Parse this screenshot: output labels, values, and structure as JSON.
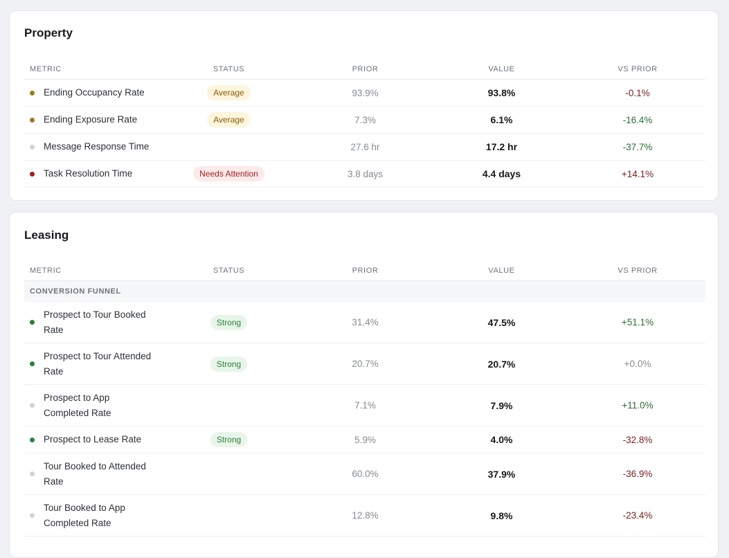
{
  "colors": {
    "average": "#9a7a1a",
    "strong": "#2e7d3a",
    "attention": "#a01d1d",
    "neutral": "#cfd3da"
  },
  "property": {
    "title": "Property",
    "headers": [
      "METRIC",
      "STATUS",
      "PRIOR",
      "VALUE",
      "VS PRIOR"
    ],
    "rows": [
      {
        "metric": "Ending Occupancy Rate",
        "status": "Average",
        "prior": "93.9%",
        "value": "93.8%",
        "vs": "-0.1%"
      },
      {
        "metric": "Ending Exposure Rate",
        "status": "Average",
        "prior": "7.3%",
        "value": "6.1%",
        "vs": "-16.4%"
      },
      {
        "metric": "Message Response Time",
        "status": "",
        "prior": "27.6 hr",
        "value": "17.2 hr",
        "vs": "-37.7%"
      },
      {
        "metric": "Task Resolution Time",
        "status": "Needs Attention",
        "prior": "3.8 days",
        "value": "4.4 days",
        "vs": "+14.1%"
      }
    ]
  },
  "leasing": {
    "title": "Leasing",
    "headers": [
      "METRIC",
      "STATUS",
      "PRIOR",
      "VALUE",
      "VS PRIOR"
    ],
    "section_label": "CONVERSION FUNNEL",
    "rows": [
      {
        "metric": "Prospect to Tour Booked Rate",
        "status": "Strong",
        "prior": "31.4%",
        "value": "47.5%",
        "vs": "+51.1%"
      },
      {
        "metric": "Prospect to Tour Attended Rate",
        "status": "Strong",
        "prior": "20.7%",
        "value": "20.7%",
        "vs": "+0.0%"
      },
      {
        "metric": "Prospect to App Completed Rate",
        "status": "",
        "prior": "7.1%",
        "value": "7.9%",
        "vs": "+11.0%"
      },
      {
        "metric": "Prospect to Lease Rate",
        "status": "Strong",
        "prior": "5.9%",
        "value": "4.0%",
        "vs": "-32.8%"
      },
      {
        "metric": "Tour Booked to Attended Rate",
        "status": "",
        "prior": "60.0%",
        "value": "37.9%",
        "vs": "-36.9%"
      },
      {
        "metric": "Tour Booked to App Completed Rate",
        "status": "",
        "prior": "12.8%",
        "value": "9.8%",
        "vs": "-23.4%"
      }
    ]
  }
}
